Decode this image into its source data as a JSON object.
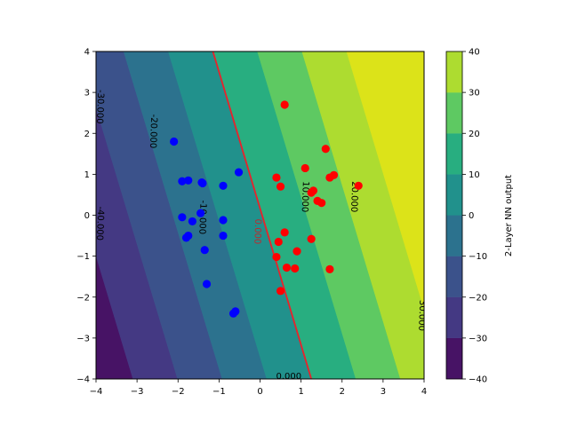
{
  "chart_data": {
    "type": "filled-contour with scatter",
    "title": "",
    "xlabel": "",
    "ylabel": "",
    "xlim": [
      -4,
      4
    ],
    "ylim": [
      -4,
      4
    ],
    "x_ticks": [
      "−4",
      "−3",
      "−2",
      "−1",
      "0",
      "1",
      "2",
      "3",
      "4"
    ],
    "y_ticks": [
      "−4",
      "−3",
      "−2",
      "−1",
      "0",
      "1",
      "2",
      "3",
      "4"
    ],
    "grid": false,
    "surface_model": {
      "a": 9.2,
      "b": 0.85,
      "c": 0.45
    },
    "levels": [
      -40,
      -30,
      -20,
      -10,
      0,
      10,
      20,
      30,
      40
    ],
    "level_colors": [
      "#471365",
      "#443983",
      "#3b528b",
      "#2c728e",
      "#21918c",
      "#28ae80",
      "#5ec962",
      "#addc30",
      "#dce319"
    ],
    "contour_lines": [
      {
        "level": 0,
        "color": "#e8222b",
        "label": "0.000"
      }
    ],
    "contour_labels": [
      {
        "text": "-30.000",
        "x": -3.9,
        "y": 2.65,
        "color": "#000000"
      },
      {
        "text": "-20.000",
        "x": -2.6,
        "y": 2.05,
        "color": "#000000"
      },
      {
        "text": "-40.000",
        "x": -3.9,
        "y": -0.2,
        "color": "#000000"
      },
      {
        "text": "-10.000",
        "x": -1.4,
        "y": -0.05,
        "color": "#000000"
      },
      {
        "text": "0.000",
        "x": -0.06,
        "y": -0.4,
        "color": "#c0282c"
      },
      {
        "text": "10.000",
        "x": 1.1,
        "y": 0.45,
        "color": "#000000"
      },
      {
        "text": "20.000",
        "x": 2.3,
        "y": 0.45,
        "color": "#000000"
      },
      {
        "text": "30.000",
        "x": 3.95,
        "y": -2.45,
        "color": "#000000"
      },
      {
        "text": "0.000",
        "x": 0.7,
        "y": -3.93,
        "color": "#000000"
      }
    ],
    "series": [
      {
        "color": "#0000ff",
        "points": [
          [
            -2.1,
            1.8
          ],
          [
            -1.9,
            0.83
          ],
          [
            -1.75,
            0.85
          ],
          [
            -1.42,
            0.8
          ],
          [
            -1.4,
            0.78
          ],
          [
            -0.52,
            1.05
          ],
          [
            -0.9,
            0.72
          ],
          [
            -1.9,
            -0.05
          ],
          [
            -1.45,
            0.05
          ],
          [
            -1.65,
            -0.15
          ],
          [
            -1.35,
            -0.85
          ],
          [
            -1.75,
            -0.5
          ],
          [
            -1.8,
            -0.55
          ],
          [
            -0.9,
            -0.12
          ],
          [
            -0.9,
            -0.5
          ],
          [
            -1.3,
            -1.68
          ],
          [
            -0.6,
            -2.35
          ],
          [
            -0.65,
            -2.4
          ]
        ]
      },
      {
        "color": "#ff0000",
        "points": [
          [
            0.6,
            2.7
          ],
          [
            1.6,
            1.62
          ],
          [
            1.1,
            1.15
          ],
          [
            1.7,
            0.92
          ],
          [
            1.8,
            0.98
          ],
          [
            0.4,
            0.92
          ],
          [
            0.5,
            0.7
          ],
          [
            1.3,
            0.6
          ],
          [
            1.25,
            0.55
          ],
          [
            1.4,
            0.35
          ],
          [
            1.5,
            0.3
          ],
          [
            2.4,
            0.72
          ],
          [
            0.6,
            -0.42
          ],
          [
            0.45,
            -0.65
          ],
          [
            1.25,
            -0.58
          ],
          [
            0.9,
            -0.88
          ],
          [
            0.4,
            -1.02
          ],
          [
            0.65,
            -1.28
          ],
          [
            0.85,
            -1.3
          ],
          [
            1.7,
            -1.32
          ],
          [
            0.5,
            -1.85
          ]
        ]
      }
    ],
    "colorbar": {
      "label": "2-Layer NN output",
      "ticks": [
        "−40",
        "−30",
        "−20",
        "−10",
        "0",
        "10",
        "20",
        "30",
        "40"
      ],
      "range": [
        -40,
        40
      ]
    }
  }
}
